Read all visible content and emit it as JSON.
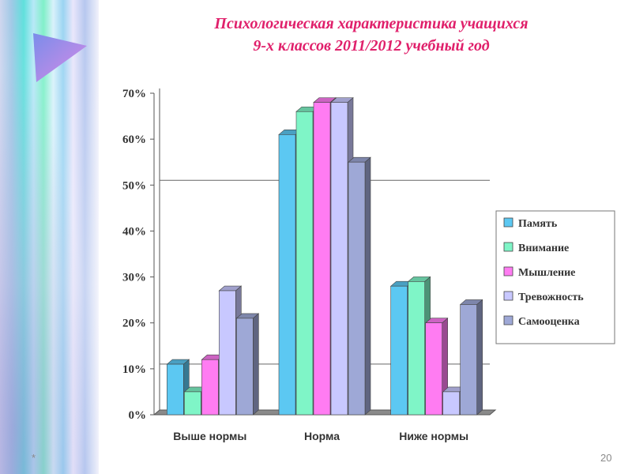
{
  "slide": {
    "title_line1": "Психологическая характеристика учащихся",
    "title_line2": "9-х классов   2011/2012 учебный год",
    "footer_mark": "*",
    "page_number": "20"
  },
  "chart_data": {
    "type": "bar",
    "categories": [
      "Выше нормы",
      "Норма",
      "Ниже нормы"
    ],
    "series": [
      {
        "name": "Память",
        "values": [
          11,
          61,
          28
        ],
        "color": "#5cc8f2"
      },
      {
        "name": "Внимание",
        "values": [
          5,
          66,
          29
        ],
        "color": "#7ff5c7"
      },
      {
        "name": "Мышление",
        "values": [
          12,
          68,
          20
        ],
        "color": "#ff7cf2"
      },
      {
        "name": "Тревожность",
        "values": [
          27,
          68,
          5
        ],
        "color": "#c8c8ff"
      },
      {
        "name": "Самооценка",
        "values": [
          21,
          55,
          24
        ],
        "color": "#9ea8d6"
      }
    ],
    "ylim": [
      0,
      70
    ],
    "yticks": [
      "0%",
      "10%",
      "20%",
      "30%",
      "40%",
      "50%",
      "60%",
      "70%"
    ],
    "grid_lines": [
      10,
      50
    ],
    "legend_position": "right",
    "xlabel": "",
    "ylabel": ""
  }
}
